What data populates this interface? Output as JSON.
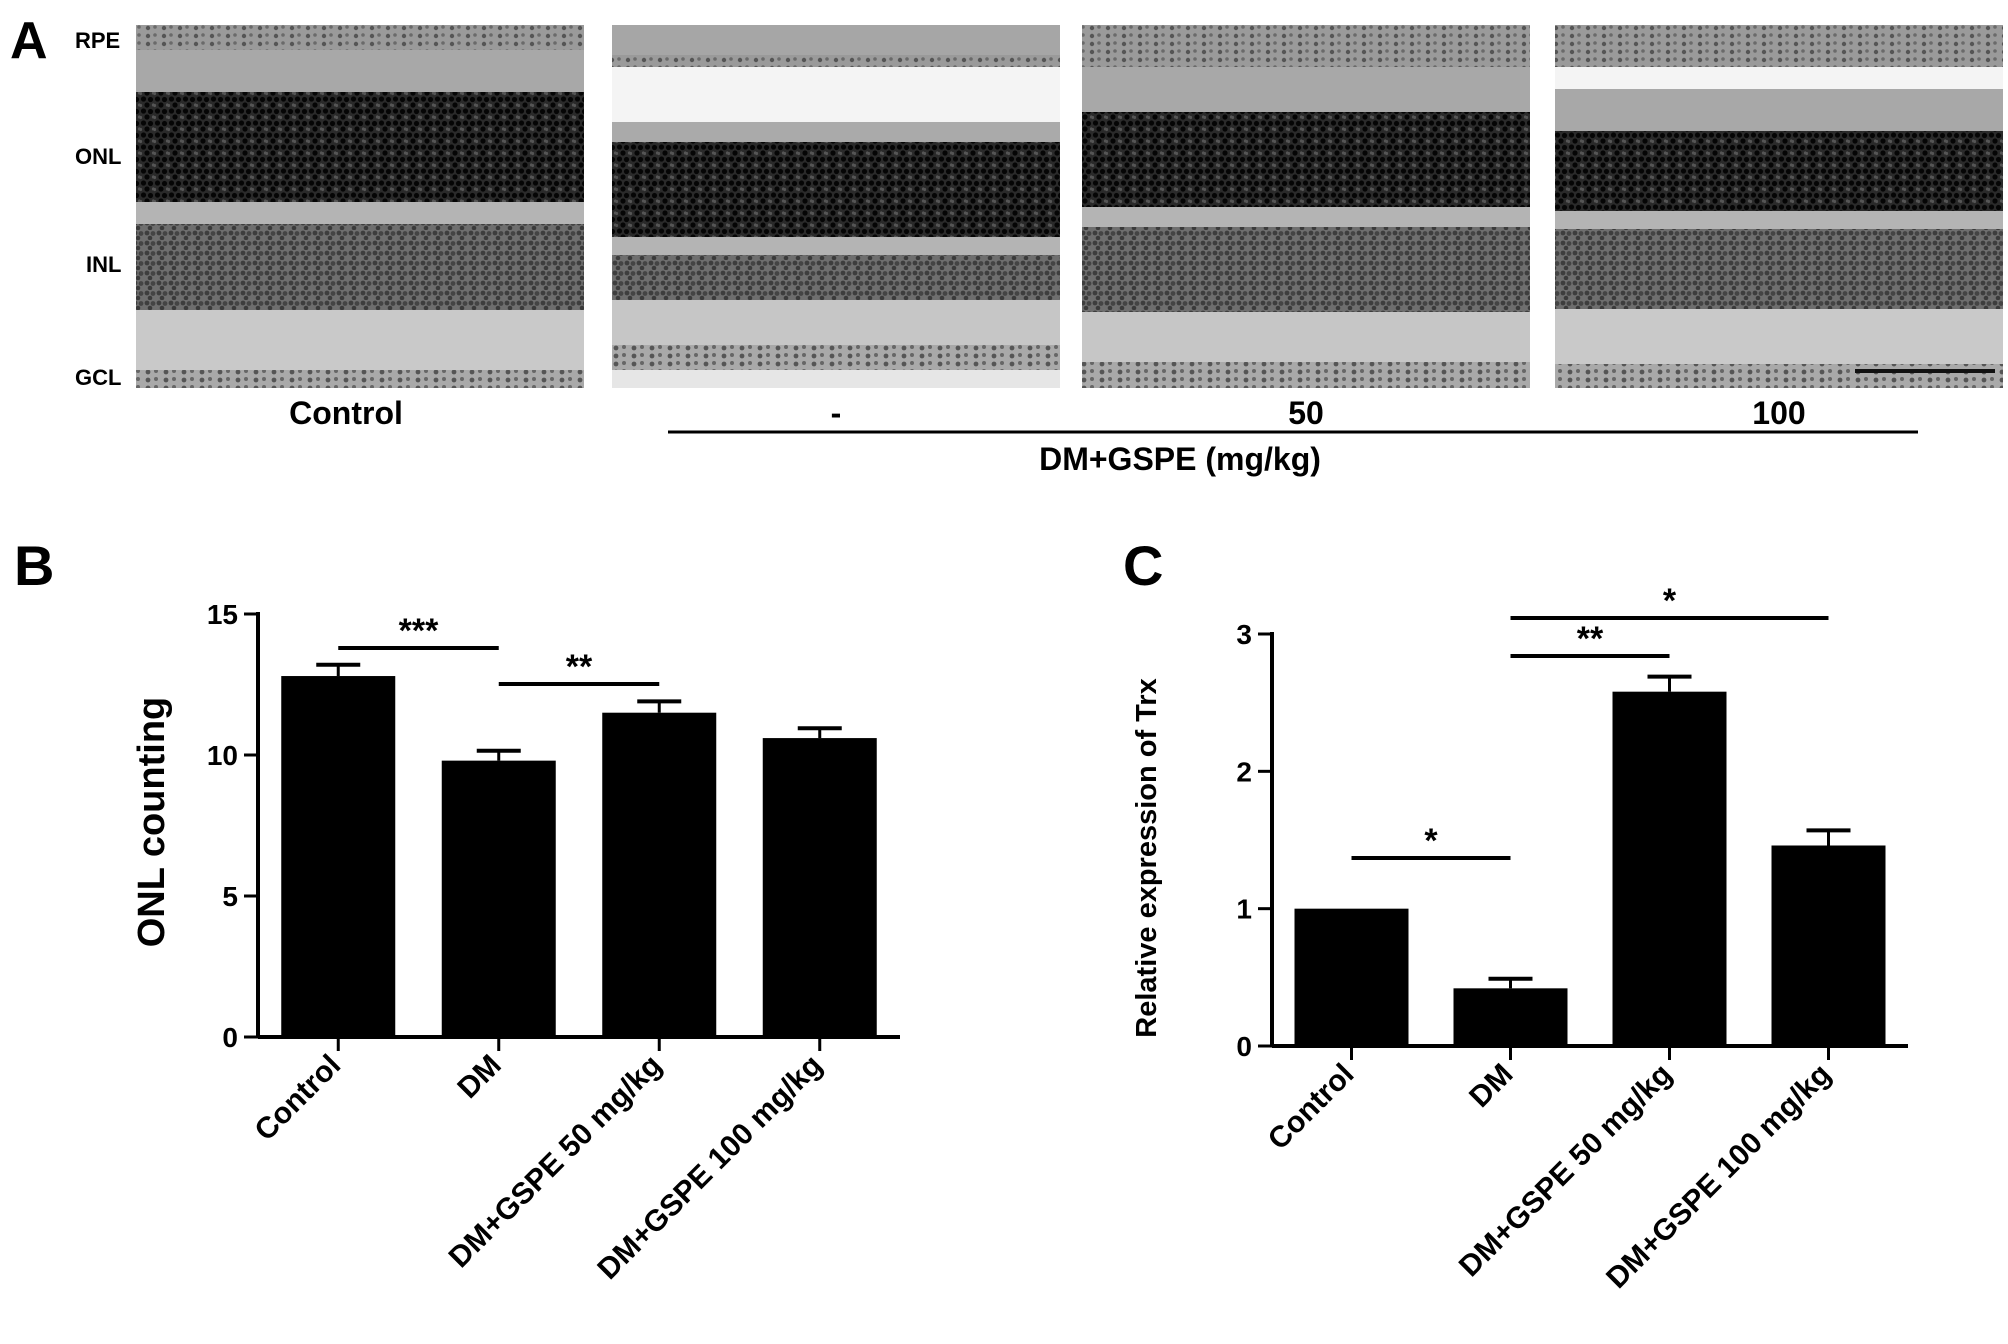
{
  "panel_a": {
    "letter": "A",
    "layers": [
      "RPE",
      "ONL",
      "INL",
      "GCL"
    ],
    "image_labels": [
      "Control",
      "-",
      "50",
      "100"
    ],
    "group_label": "DM+GSPE (mg/kg)",
    "colors": {
      "stain_dark": "#1a1a1a",
      "stain_mid": "#8f8f8f",
      "stain_light": "#c6c6c6",
      "background": "#ffffff"
    }
  },
  "chart_data": [
    {
      "panel": "B",
      "type": "bar",
      "categories": [
        "Control",
        "DM",
        "DM+GSPE 50 mg/kg",
        "DM+GSPE 100 mg/kg"
      ],
      "values": [
        12.8,
        9.8,
        11.5,
        10.6
      ],
      "errors": [
        0.4,
        0.35,
        0.4,
        0.35
      ],
      "ylabel": "ONL counting",
      "xlabel": "",
      "ylim": [
        0,
        15
      ],
      "yticks": [
        0,
        5,
        10,
        15
      ],
      "bar_color": "#000000",
      "significance": [
        {
          "from": 0,
          "to": 1,
          "label": "***"
        },
        {
          "from": 1,
          "to": 2,
          "label": "**"
        }
      ]
    },
    {
      "panel": "C",
      "type": "bar",
      "categories": [
        "Control",
        "DM",
        "DM+GSPE 50 mg/kg",
        "DM+GSPE 100 mg/kg"
      ],
      "values": [
        1.0,
        0.42,
        2.58,
        1.46
      ],
      "errors": [
        0.0,
        0.07,
        0.11,
        0.11
      ],
      "ylabel": "Relative expression of Trx",
      "xlabel": "",
      "ylim": [
        0,
        3
      ],
      "yticks": [
        0,
        1,
        2,
        3
      ],
      "bar_color": "#000000",
      "significance": [
        {
          "from": 0,
          "to": 1,
          "label": "*"
        },
        {
          "from": 1,
          "to": 2,
          "label": "**"
        },
        {
          "from": 1,
          "to": 3,
          "label": "*"
        }
      ]
    }
  ]
}
